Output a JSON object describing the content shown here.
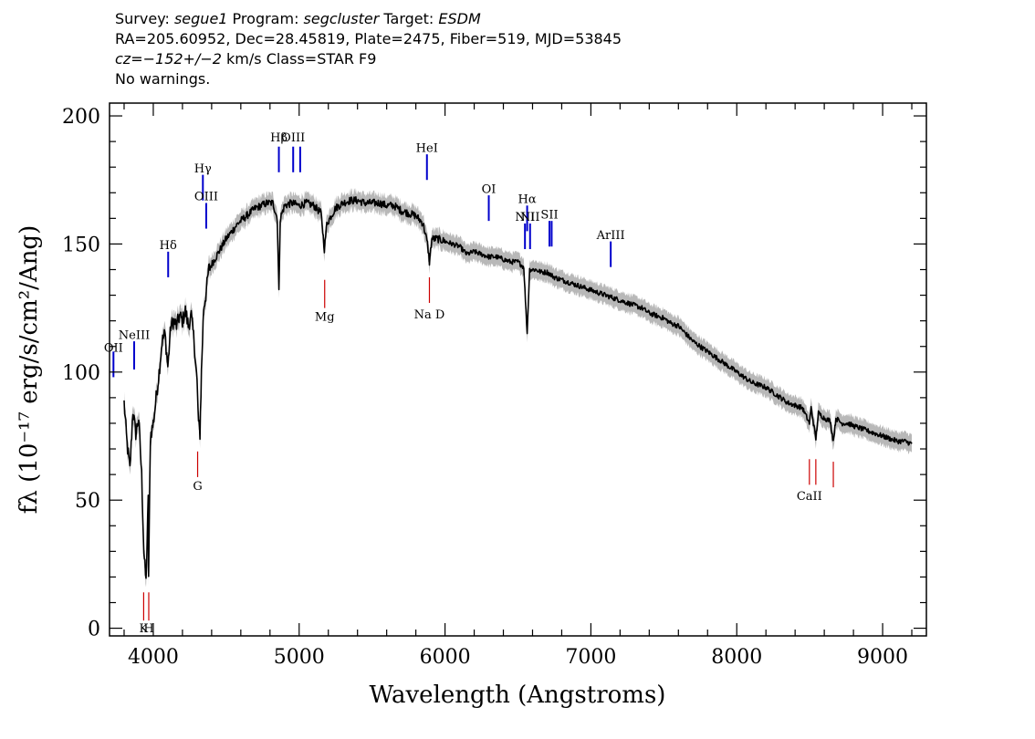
{
  "header": {
    "line1": {
      "survey_label": "Survey: ",
      "survey": "segue1",
      "program_label": " Program: ",
      "program": "segcluster",
      "target_label": " Target: ",
      "target": "ESDM"
    },
    "line2": "RA=205.60952, Dec=28.45819, Plate=2475, Fiber=519, MJD=53845",
    "line3": {
      "cz_label": "cz=",
      "cz_value": "−152+/−2",
      "cz_rest": " km/s Class=STAR F9"
    },
    "line4": "No warnings."
  },
  "chart_data": {
    "type": "line",
    "xlabel": "Wavelength (Angstroms)",
    "ylabel": "fλ (10⁻¹⁷ erg/s/cm²/Ang)",
    "xlim": [
      3700,
      9300
    ],
    "ylim": [
      -3,
      205
    ],
    "x_ticks": [
      4000,
      5000,
      6000,
      7000,
      8000,
      9000
    ],
    "y_ticks": [
      0,
      50,
      100,
      150,
      200
    ],
    "grid": false,
    "colors": {
      "spectrum": "#000000",
      "error_band": "#b8b8b8",
      "emission": "#0000cc",
      "absorption": "#cc0000"
    },
    "series": [
      {
        "values_xy": [
          [
            3800,
            88
          ],
          [
            3820,
            72
          ],
          [
            3840,
            62
          ],
          [
            3860,
            85
          ],
          [
            3880,
            76
          ],
          [
            3900,
            82
          ],
          [
            3920,
            60
          ],
          [
            3935,
            30
          ],
          [
            3950,
            18
          ],
          [
            3965,
            50
          ],
          [
            3968,
            20
          ],
          [
            3980,
            75
          ],
          [
            4000,
            80
          ],
          [
            4020,
            90
          ],
          [
            4040,
            100
          ],
          [
            4060,
            112
          ],
          [
            4080,
            115
          ],
          [
            4100,
            102
          ],
          [
            4120,
            118
          ],
          [
            4140,
            120
          ],
          [
            4160,
            118
          ],
          [
            4180,
            122
          ],
          [
            4200,
            120
          ],
          [
            4220,
            124
          ],
          [
            4240,
            118
          ],
          [
            4260,
            122
          ],
          [
            4280,
            112
          ],
          [
            4300,
            96
          ],
          [
            4310,
            80
          ],
          [
            4320,
            76
          ],
          [
            4330,
            100
          ],
          [
            4345,
            125
          ],
          [
            4360,
            130
          ],
          [
            4380,
            140
          ],
          [
            4400,
            142
          ],
          [
            4430,
            145
          ],
          [
            4460,
            148
          ],
          [
            4500,
            152
          ],
          [
            4540,
            155
          ],
          [
            4580,
            158
          ],
          [
            4620,
            160
          ],
          [
            4660,
            162
          ],
          [
            4700,
            164
          ],
          [
            4740,
            165
          ],
          [
            4780,
            166
          ],
          [
            4820,
            166
          ],
          [
            4850,
            160
          ],
          [
            4861,
            131
          ],
          [
            4870,
            160
          ],
          [
            4900,
            165
          ],
          [
            4950,
            166
          ],
          [
            5000,
            165
          ],
          [
            5050,
            166
          ],
          [
            5100,
            165
          ],
          [
            5150,
            162
          ],
          [
            5173,
            148
          ],
          [
            5190,
            158
          ],
          [
            5250,
            164
          ],
          [
            5300,
            166
          ],
          [
            5350,
            167
          ],
          [
            5400,
            167
          ],
          [
            5450,
            166
          ],
          [
            5500,
            166
          ],
          [
            5550,
            166
          ],
          [
            5600,
            165
          ],
          [
            5650,
            165
          ],
          [
            5700,
            163
          ],
          [
            5750,
            162
          ],
          [
            5800,
            161
          ],
          [
            5850,
            158
          ],
          [
            5880,
            150
          ],
          [
            5893,
            143
          ],
          [
            5910,
            152
          ],
          [
            5950,
            152
          ],
          [
            6000,
            151
          ],
          [
            6050,
            150
          ],
          [
            6100,
            149
          ],
          [
            6150,
            146
          ],
          [
            6200,
            147
          ],
          [
            6250,
            146
          ],
          [
            6300,
            145
          ],
          [
            6350,
            145
          ],
          [
            6400,
            144
          ],
          [
            6450,
            143
          ],
          [
            6500,
            143
          ],
          [
            6540,
            141
          ],
          [
            6563,
            115
          ],
          [
            6580,
            140
          ],
          [
            6620,
            140
          ],
          [
            6660,
            139
          ],
          [
            6700,
            139
          ],
          [
            6750,
            137
          ],
          [
            6800,
            136
          ],
          [
            6850,
            135
          ],
          [
            6900,
            134
          ],
          [
            6950,
            133
          ],
          [
            7000,
            132
          ],
          [
            7050,
            131
          ],
          [
            7100,
            130
          ],
          [
            7150,
            129
          ],
          [
            7200,
            128
          ],
          [
            7250,
            127
          ],
          [
            7300,
            126
          ],
          [
            7350,
            125
          ],
          [
            7400,
            123
          ],
          [
            7450,
            122
          ],
          [
            7500,
            121
          ],
          [
            7550,
            119
          ],
          [
            7600,
            118
          ],
          [
            7650,
            115
          ],
          [
            7700,
            112
          ],
          [
            7750,
            110
          ],
          [
            7800,
            108
          ],
          [
            7850,
            106
          ],
          [
            7900,
            104
          ],
          [
            7950,
            102
          ],
          [
            8000,
            100
          ],
          [
            8050,
            98
          ],
          [
            8100,
            96
          ],
          [
            8150,
            95
          ],
          [
            8200,
            94
          ],
          [
            8250,
            92
          ],
          [
            8300,
            90
          ],
          [
            8350,
            88
          ],
          [
            8400,
            87
          ],
          [
            8450,
            86
          ],
          [
            8498,
            80
          ],
          [
            8510,
            86
          ],
          [
            8542,
            74
          ],
          [
            8560,
            84
          ],
          [
            8600,
            82
          ],
          [
            8640,
            81
          ],
          [
            8662,
            73
          ],
          [
            8680,
            82
          ],
          [
            8720,
            80
          ],
          [
            8760,
            80
          ],
          [
            8800,
            79
          ],
          [
            8850,
            78
          ],
          [
            8900,
            77
          ],
          [
            8950,
            76
          ],
          [
            9000,
            75
          ],
          [
            9050,
            74
          ],
          [
            9100,
            73
          ],
          [
            9150,
            73
          ],
          [
            9200,
            72
          ]
        ]
      }
    ],
    "line_markers": [
      {
        "label": "OII",
        "wavelength": 3727,
        "type": "emission",
        "y_top": 108,
        "y_bottom": 98,
        "label_y": 108
      },
      {
        "label": "NeIII",
        "wavelength": 3869,
        "type": "emission",
        "y_top": 112,
        "y_bottom": 101,
        "label_y": 113
      },
      {
        "label": "K",
        "wavelength": 3934,
        "type": "absorption",
        "y_top": 14,
        "y_bottom": 3,
        "label_y": -1.5
      },
      {
        "label": "H",
        "wavelength": 3969,
        "type": "absorption",
        "y_top": 14,
        "y_bottom": 3,
        "label_y": -1.5
      },
      {
        "label": "Hδ",
        "wavelength": 4102,
        "type": "emission",
        "y_top": 147,
        "y_bottom": 137,
        "label_y": 148
      },
      {
        "label": "G",
        "wavelength": 4304,
        "type": "absorption",
        "y_top": 69,
        "y_bottom": 59,
        "label_y": 54
      },
      {
        "label": "Hγ",
        "wavelength": 4340,
        "type": "emission",
        "y_top": 177,
        "y_bottom": 167,
        "label_y": 178
      },
      {
        "label": "OIII",
        "wavelength": 4363,
        "type": "emission",
        "y_top": 166,
        "y_bottom": 156,
        "label_y": 167
      },
      {
        "label": "Hβ",
        "wavelength": 4861,
        "type": "emission",
        "y_top": 188,
        "y_bottom": 178,
        "label_y": 190
      },
      {
        "label": "OIII",
        "wavelength": 4959,
        "type": "emission",
        "y_top": 188,
        "y_bottom": 178,
        "label_y": 190
      },
      {
        "label": "",
        "wavelength": 5007,
        "type": "emission",
        "y_top": 188,
        "y_bottom": 178,
        "label_y": 190
      },
      {
        "label": "Mg",
        "wavelength": 5175,
        "type": "absorption",
        "y_top": 136,
        "y_bottom": 125,
        "label_y": 120
      },
      {
        "label": "HeI",
        "wavelength": 5876,
        "type": "emission",
        "y_top": 185,
        "y_bottom": 175,
        "label_y": 186
      },
      {
        "label": "Na D",
        "wavelength": 5893,
        "type": "absorption",
        "y_top": 137,
        "y_bottom": 127,
        "label_y": 121
      },
      {
        "label": "OI",
        "wavelength": 6300,
        "type": "emission",
        "y_top": 169,
        "y_bottom": 159,
        "label_y": 170
      },
      {
        "label": "NII",
        "wavelength": 6548,
        "type": "emission",
        "y_top": 158,
        "y_bottom": 148,
        "label_y": 159
      },
      {
        "label": "Hα",
        "wavelength": 6563,
        "type": "emission",
        "y_top": 165,
        "y_bottom": 155,
        "label_y": 166
      },
      {
        "label": "NII",
        "wavelength": 6583,
        "type": "emission",
        "y_top": 158,
        "y_bottom": 148,
        "label_y": 159
      },
      {
        "label": "SII",
        "wavelength": 6716,
        "type": "emission",
        "y_top": 159,
        "y_bottom": 149,
        "label_y": 160
      },
      {
        "label": "",
        "wavelength": 6731,
        "type": "emission",
        "y_top": 159,
        "y_bottom": 149,
        "label_y": 160
      },
      {
        "label": "ArIII",
        "wavelength": 7136,
        "type": "emission",
        "y_top": 151,
        "y_bottom": 141,
        "label_y": 152
      },
      {
        "label": "CaII",
        "wavelength": 8498,
        "type": "absorption",
        "y_top": 66,
        "y_bottom": 56,
        "label_y": 50
      },
      {
        "label": "",
        "wavelength": 8542,
        "type": "absorption",
        "y_top": 66,
        "y_bottom": 56,
        "label_y": 50
      },
      {
        "label": "",
        "wavelength": 8662,
        "type": "absorption",
        "y_top": 65,
        "y_bottom": 55,
        "label_y": 50
      }
    ]
  }
}
